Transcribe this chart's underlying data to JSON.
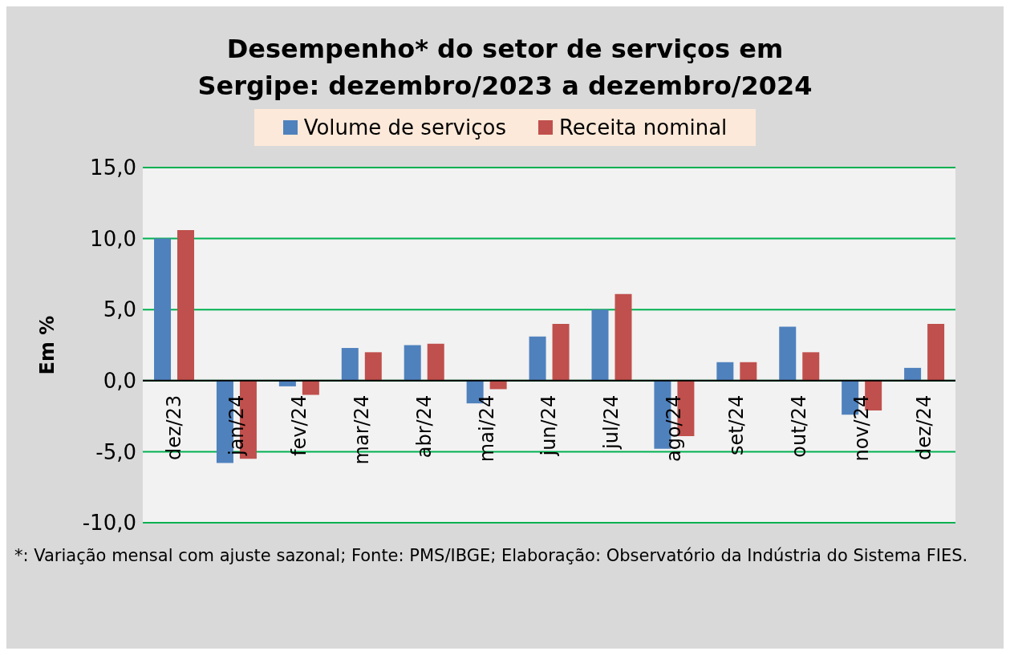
{
  "chart_data": {
    "type": "bar",
    "title": "Desempenho* do setor de serviços em Sergipe: dezembro/2023 a dezembro/2024",
    "ylabel": "Em %",
    "categories": [
      "dez/23",
      "jan/24",
      "fev/24",
      "mar/24",
      "abr/24",
      "mai/24",
      "jun/24",
      "jul/24",
      "ago/24",
      "set/24",
      "out/24",
      "nov/24",
      "dez/24"
    ],
    "series": [
      {
        "name": "Volume de serviços",
        "color": "#4f81bd",
        "values": [
          10.0,
          -5.8,
          -0.4,
          2.3,
          2.5,
          -1.6,
          3.1,
          5.0,
          -4.8,
          1.3,
          3.8,
          -2.4,
          0.9
        ]
      },
      {
        "name": "Receita nominal",
        "color": "#c0504d",
        "values": [
          10.6,
          -5.5,
          -1.0,
          2.0,
          2.6,
          -0.6,
          4.0,
          6.1,
          -3.9,
          1.3,
          2.0,
          -2.1,
          4.0
        ]
      }
    ],
    "ylim": [
      -10,
      15
    ],
    "yticks": [
      {
        "value": -10,
        "label": "-10,0"
      },
      {
        "value": -5,
        "label": "-5,0"
      },
      {
        "value": 0,
        "label": "0,0"
      },
      {
        "value": 5,
        "label": "5,0"
      },
      {
        "value": 10,
        "label": "10,0"
      },
      {
        "value": 15,
        "label": "15,0"
      }
    ],
    "grid": "y",
    "legend": "top",
    "annotations": [
      "*: Variação mensal com ajuste sazonal; Fonte: PMS/IBGE; Elaboração: Observatório da Indústria do Sistema FIES."
    ]
  }
}
